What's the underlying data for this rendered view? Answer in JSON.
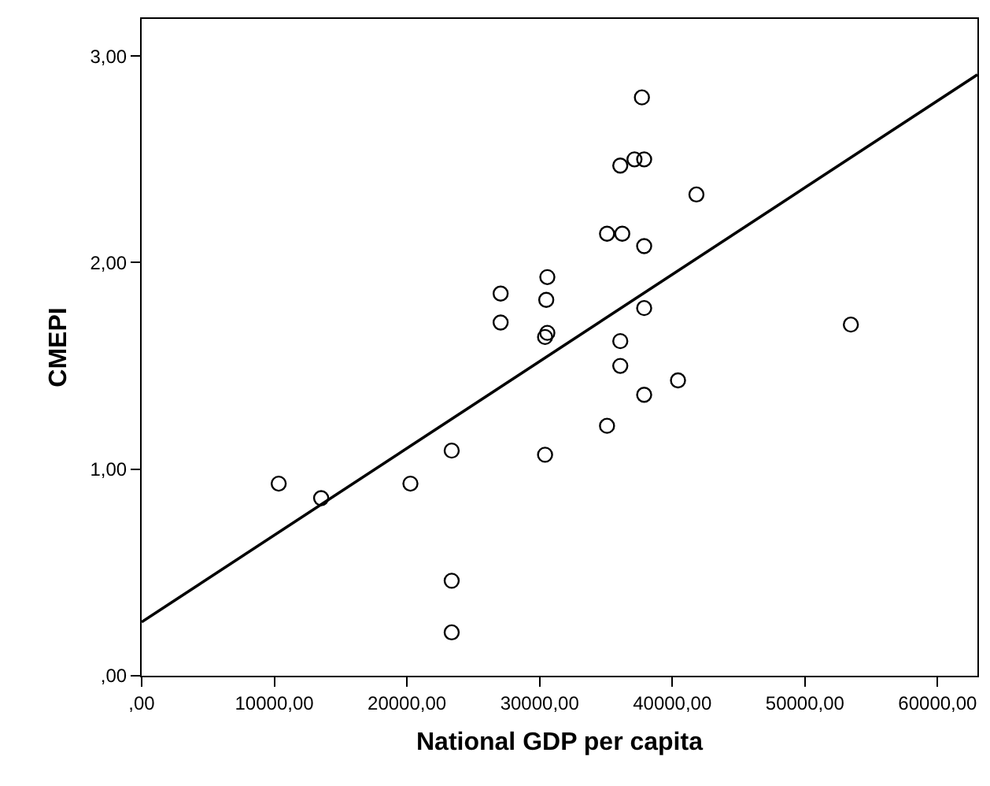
{
  "chart_data": {
    "type": "scatter",
    "xlabel": "National GDP per capita",
    "ylabel": "CMEPI",
    "marker": "circle",
    "grid": false,
    "xlim": [
      0,
      63000
    ],
    "ylim": [
      0,
      3.18
    ],
    "xticks": [
      {
        "value": 0,
        "label": ",00"
      },
      {
        "value": 10000,
        "label": "10000,00"
      },
      {
        "value": 20000,
        "label": "20000,00"
      },
      {
        "value": 30000,
        "label": "30000,00"
      },
      {
        "value": 40000,
        "label": "40000,00"
      },
      {
        "value": 50000,
        "label": "50000,00"
      },
      {
        "value": 60000,
        "label": "60000,00"
      }
    ],
    "yticks": [
      {
        "value": 0,
        "label": ",00"
      },
      {
        "value": 1,
        "label": "1,00"
      },
      {
        "value": 2,
        "label": "2,00"
      },
      {
        "value": 3,
        "label": "3,00"
      }
    ],
    "series": [
      {
        "color": "#000000",
        "x": [
          37710,
          36080,
          37150,
          37880,
          41820,
          35080,
          36230,
          37880,
          30580,
          27060,
          30500,
          27060,
          30580,
          30410,
          37880,
          53460,
          36080,
          36080,
          40430,
          37880,
          35080,
          23370,
          30410,
          10330,
          13530,
          20260,
          23370,
          23370
        ],
        "values": [
          2.8,
          2.47,
          2.5,
          2.5,
          2.33,
          2.14,
          2.14,
          2.08,
          1.93,
          1.85,
          1.82,
          1.71,
          1.66,
          1.64,
          1.78,
          1.7,
          1.62,
          1.5,
          1.43,
          1.36,
          1.21,
          1.09,
          1.07,
          0.93,
          0.86,
          0.93,
          0.46,
          0.21
        ]
      },
      {
        "type": "line",
        "color": "#000000",
        "line_style": "solid",
        "marker": "none",
        "x": [
          0,
          63000
        ],
        "values": [
          0.26,
          2.91
        ]
      }
    ]
  }
}
